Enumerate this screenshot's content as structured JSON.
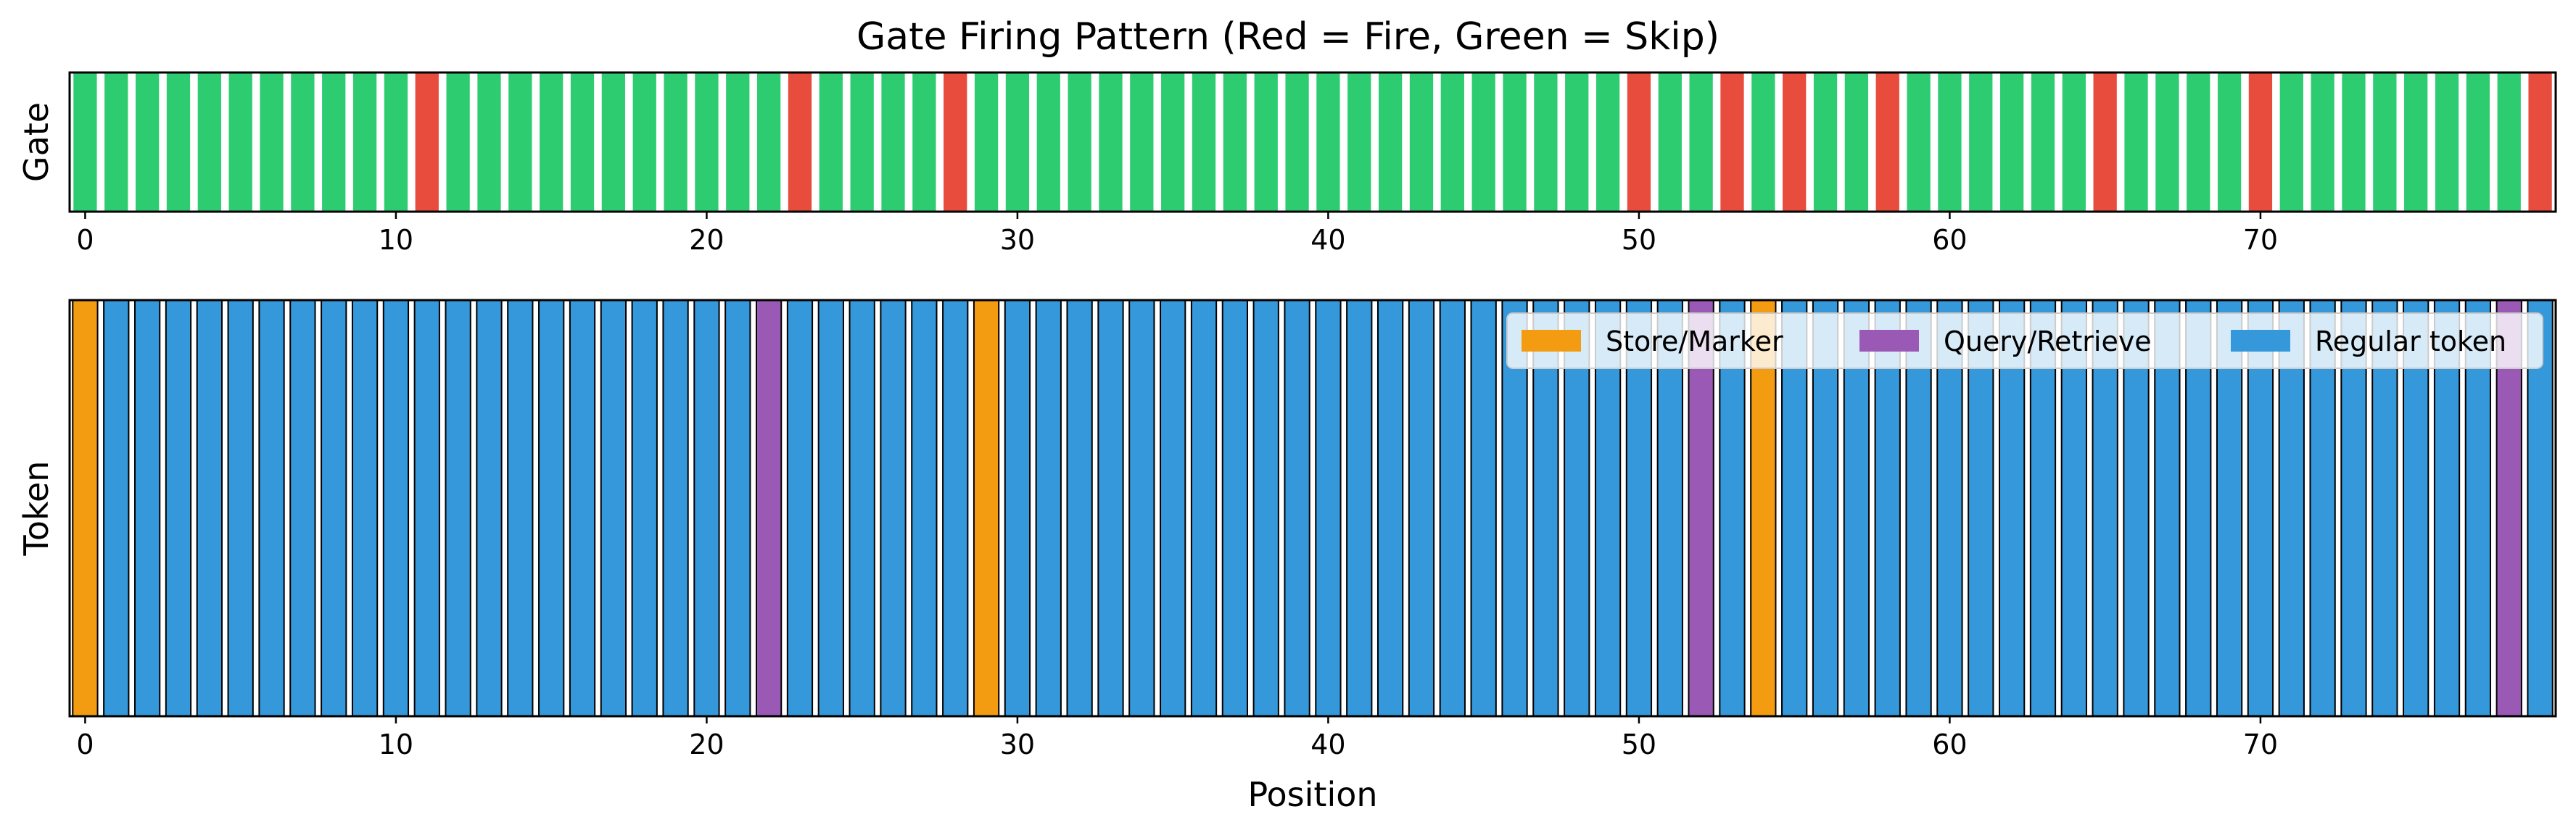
{
  "chart_data": [
    {
      "type": "bar",
      "title": "Gate Firing Pattern (Red = Fire, Green = Skip)",
      "xlabel": "",
      "ylabel": "Gate",
      "xlim": [
        -0.5,
        79.5
      ],
      "ylim": [
        0,
        1
      ],
      "xticks": [
        0,
        10,
        20,
        30,
        40,
        50,
        60,
        70
      ],
      "x_start": 0,
      "values": [
        1,
        1,
        1,
        1,
        1,
        1,
        1,
        1,
        1,
        1,
        1,
        1,
        1,
        1,
        1,
        1,
        1,
        1,
        1,
        1,
        1,
        1,
        1,
        1,
        1,
        1,
        1,
        1,
        1,
        1,
        1,
        1,
        1,
        1,
        1,
        1,
        1,
        1,
        1,
        1,
        1,
        1,
        1,
        1,
        1,
        1,
        1,
        1,
        1,
        1,
        1,
        1,
        1,
        1,
        1,
        1,
        1,
        1,
        1,
        1,
        1,
        1,
        1,
        1,
        1,
        1,
        1,
        1,
        1,
        1,
        1,
        1,
        1,
        1,
        1,
        1,
        1,
        1,
        1,
        1
      ],
      "fire_positions": [
        11,
        23,
        28,
        50,
        53,
        55,
        58,
        65,
        70,
        79
      ],
      "colors": {
        "fire": "#e74c3c",
        "skip": "#2ecc71"
      },
      "bar_edge_color": "#ffffff"
    },
    {
      "type": "bar",
      "title": "",
      "xlabel": "Position",
      "ylabel": "Token",
      "xlim": [
        -0.5,
        79.5
      ],
      "ylim": [
        0,
        1
      ],
      "xticks": [
        0,
        10,
        20,
        30,
        40,
        50,
        60,
        70
      ],
      "x_start": 0,
      "values": [
        1,
        1,
        1,
        1,
        1,
        1,
        1,
        1,
        1,
        1,
        1,
        1,
        1,
        1,
        1,
        1,
        1,
        1,
        1,
        1,
        1,
        1,
        1,
        1,
        1,
        1,
        1,
        1,
        1,
        1,
        1,
        1,
        1,
        1,
        1,
        1,
        1,
        1,
        1,
        1,
        1,
        1,
        1,
        1,
        1,
        1,
        1,
        1,
        1,
        1,
        1,
        1,
        1,
        1,
        1,
        1,
        1,
        1,
        1,
        1,
        1,
        1,
        1,
        1,
        1,
        1,
        1,
        1,
        1,
        1,
        1,
        1,
        1,
        1,
        1,
        1,
        1,
        1,
        1,
        1
      ],
      "store_positions": [
        0,
        29,
        54
      ],
      "query_positions": [
        22,
        52,
        78
      ],
      "colors": {
        "store": "#f39c12",
        "query": "#9b59b6",
        "regular": "#3498db"
      },
      "bar_edge_color": "#000000",
      "legend": {
        "position": "upper-right",
        "entries": [
          {
            "label": "Store/Marker",
            "color": "#f39c12"
          },
          {
            "label": "Query/Retrieve",
            "color": "#9b59b6"
          },
          {
            "label": "Regular token",
            "color": "#3498db"
          }
        ]
      }
    }
  ]
}
